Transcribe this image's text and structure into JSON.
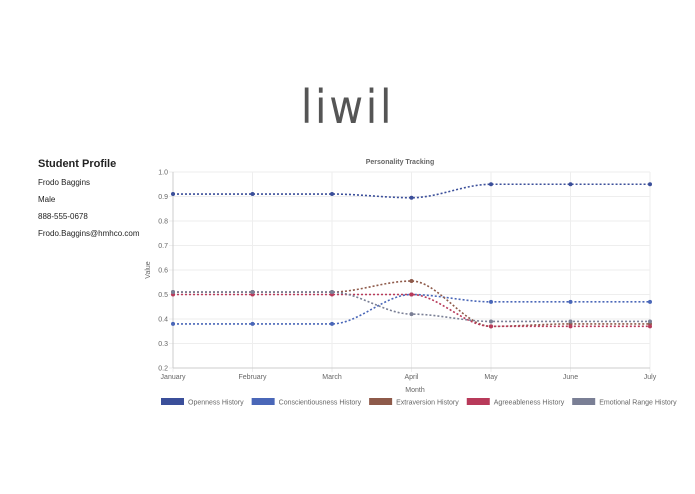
{
  "logo": "liwil",
  "profile": {
    "title": "Student Profile",
    "name": "Frodo Baggins",
    "gender": "Male",
    "phone": "888-555-0678",
    "email": "Frodo.Baggins@hmhco.com"
  },
  "chart_data": {
    "type": "line",
    "title": "Personality Tracking",
    "xlabel": "Month",
    "ylabel": "Value",
    "ylim": [
      0.2,
      1.0
    ],
    "yticks": [
      "0.2",
      "0.3",
      "0.4",
      "0.5",
      "0.6",
      "0.7",
      "0.8",
      "0.9",
      "1.0"
    ],
    "categories": [
      "January",
      "February",
      "March",
      "April",
      "May",
      "June",
      "July"
    ],
    "grid": true,
    "legend": "bottom",
    "series": [
      {
        "name": "Openness History",
        "color": "#3b4f9a",
        "values": [
          0.91,
          0.91,
          0.91,
          0.895,
          0.95,
          0.95,
          0.95
        ]
      },
      {
        "name": "Conscientiousness History",
        "color": "#4a67b8",
        "values": [
          0.38,
          0.38,
          0.38,
          0.5,
          0.47,
          0.47,
          0.47
        ]
      },
      {
        "name": "Extraversion History",
        "color": "#8e5a4a",
        "values": [
          0.51,
          0.51,
          0.51,
          0.555,
          0.37,
          0.38,
          0.38
        ]
      },
      {
        "name": "Agreeableness History",
        "color": "#b83a5a",
        "values": [
          0.5,
          0.5,
          0.5,
          0.5,
          0.37,
          0.37,
          0.37
        ]
      },
      {
        "name": "Emotional Range History",
        "color": "#7a7f95",
        "values": [
          0.51,
          0.51,
          0.51,
          0.42,
          0.39,
          0.39,
          0.39
        ]
      }
    ]
  }
}
